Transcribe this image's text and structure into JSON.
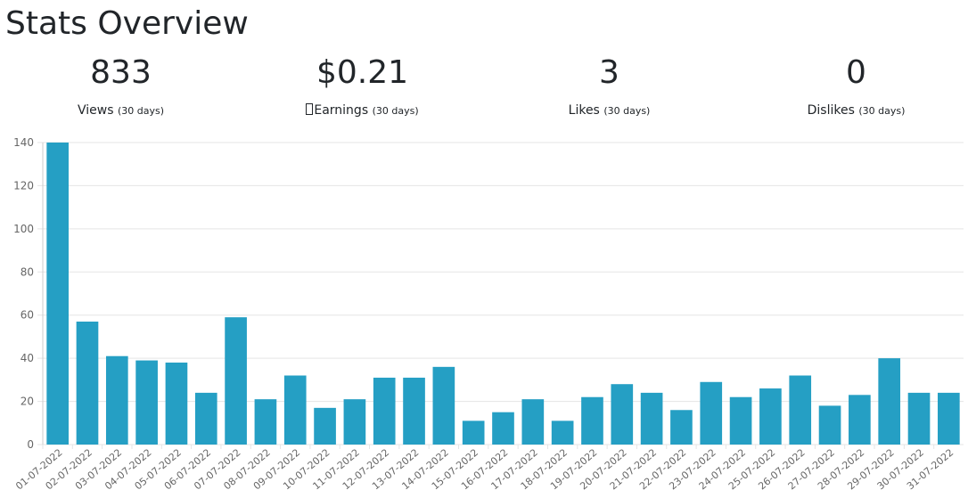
{
  "header": {
    "title": "Stats Overview"
  },
  "stats": [
    {
      "value": "833",
      "label": "Views",
      "range": "(30 days)",
      "has_glyph": false
    },
    {
      "value": "$0.21",
      "label": "Earnings",
      "range": "(30 days)",
      "has_glyph": true
    },
    {
      "value": "3",
      "label": "Likes",
      "range": "(30 days)",
      "has_glyph": false
    },
    {
      "value": "0",
      "label": "Dislikes",
      "range": "(30 days)",
      "has_glyph": false
    }
  ],
  "colors": {
    "bar": "#259fc4",
    "grid": "#e5e5e5",
    "axis_text": "#666666"
  },
  "chart_data": {
    "type": "bar",
    "title": "",
    "xlabel": "",
    "ylabel": "",
    "ylim": [
      0,
      140
    ],
    "yticks": [
      0,
      20,
      40,
      60,
      80,
      100,
      120,
      140
    ],
    "grid": true,
    "legend": "none",
    "categories": [
      "01-07-2022",
      "02-07-2022",
      "03-07-2022",
      "04-07-2022",
      "05-07-2022",
      "06-07-2022",
      "07-07-2022",
      "08-07-2022",
      "09-07-2022",
      "10-07-2022",
      "11-07-2022",
      "12-07-2022",
      "13-07-2022",
      "14-07-2022",
      "15-07-2022",
      "16-07-2022",
      "17-07-2022",
      "18-07-2022",
      "19-07-2022",
      "20-07-2022",
      "21-07-2022",
      "22-07-2022",
      "23-07-2022",
      "24-07-2022",
      "25-07-2022",
      "26-07-2022",
      "27-07-2022",
      "28-07-2022",
      "29-07-2022",
      "30-07-2022",
      "31-07-2022"
    ],
    "values": [
      140,
      57,
      41,
      39,
      38,
      24,
      59,
      21,
      32,
      17,
      21,
      31,
      31,
      36,
      11,
      15,
      21,
      11,
      22,
      28,
      24,
      16,
      29,
      22,
      26,
      32,
      18,
      23,
      40,
      24,
      24
    ]
  }
}
